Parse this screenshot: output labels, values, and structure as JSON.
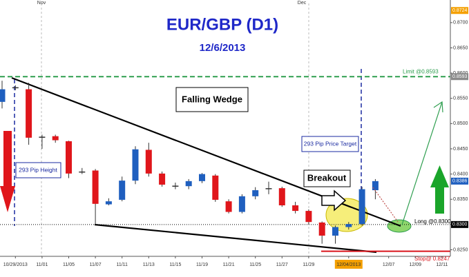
{
  "chart_data": {
    "type": "candlestick",
    "title": "EUR/GBP (D1)",
    "subtitle": "12/6/2013",
    "top_labels": [
      "Nov",
      "Dec"
    ],
    "categories": [
      null,
      "10/29/2013",
      null,
      "11/01",
      null,
      "11/05",
      null,
      "11/07",
      null,
      "11/11",
      null,
      "11/13",
      null,
      "11/15",
      null,
      "11/19",
      null,
      "11/21",
      null,
      "11/25",
      null,
      "11/27",
      null,
      "11/29",
      null,
      null,
      "12/04/2013",
      null,
      null,
      "12/07",
      null,
      "12/09",
      null,
      "12/11",
      null,
      null
    ],
    "highlight_category": 26,
    "open": [
      0.8543,
      0.8572,
      0.8568,
      0.8474,
      0.8475,
      0.8465,
      0.8405,
      0.8407,
      0.834,
      0.8349,
      0.8387,
      0.8448,
      0.8401,
      0.8377,
      0.8376,
      0.8386,
      0.8397,
      0.8346,
      0.8325,
      0.8356,
      0.8372,
      0.8372,
      0.8338,
      0.8327,
      0.8304,
      0.8278,
      0.8295,
      0.8301,
      0.8368,
      null,
      null,
      null,
      null,
      null,
      null,
      null
    ],
    "high": [
      0.8585,
      0.8576,
      0.8581,
      0.8478,
      0.8478,
      0.8466,
      0.8412,
      0.841,
      0.8352,
      0.8395,
      0.8455,
      0.8462,
      0.8405,
      0.8383,
      0.839,
      0.8402,
      0.84,
      0.835,
      0.836,
      0.8374,
      0.8385,
      0.8375,
      0.8345,
      0.833,
      0.8306,
      0.8298,
      0.8305,
      0.8375,
      0.839,
      null,
      null,
      null,
      null,
      null,
      null,
      null
    ],
    "low": [
      0.853,
      0.8566,
      0.8458,
      0.845,
      0.8462,
      0.8392,
      0.84,
      0.83,
      0.8338,
      0.8346,
      0.838,
      0.8395,
      0.8375,
      0.837,
      0.837,
      0.8382,
      0.8345,
      0.8322,
      0.8322,
      0.835,
      0.836,
      0.8335,
      0.8322,
      0.83,
      0.8262,
      0.8262,
      0.829,
      0.8298,
      0.835,
      null,
      null,
      null,
      null,
      null,
      null,
      null
    ],
    "close": [
      0.8568,
      0.857,
      0.8472,
      0.8473,
      0.8467,
      0.8401,
      0.8404,
      0.8341,
      0.8346,
      0.8387,
      0.8449,
      0.8401,
      0.8379,
      0.8376,
      0.8386,
      0.84,
      0.8349,
      0.8325,
      0.8356,
      0.8368,
      0.8371,
      0.8338,
      0.8327,
      0.8305,
      0.8278,
      0.8295,
      0.8301,
      0.837,
      0.8386,
      null,
      null,
      null,
      null,
      null,
      null,
      null
    ],
    "up_color": "#1f5fbf",
    "down_color": "#e0161b",
    "ylim": [
      0.8237,
      0.8738
    ],
    "yticks": [
      {
        "value": 0.825,
        "label": "0.8250"
      },
      {
        "value": 0.83,
        "label": "0.8300"
      },
      {
        "value": 0.835,
        "label": "0.8350"
      },
      {
        "value": 0.84,
        "label": "0.8400"
      },
      {
        "value": 0.845,
        "label": "0.8450"
      },
      {
        "value": 0.85,
        "label": "0.8500"
      },
      {
        "value": 0.855,
        "label": "0.8550"
      },
      {
        "value": 0.86,
        "label": "0.8600"
      },
      {
        "value": 0.865,
        "label": "0.8650"
      },
      {
        "value": 0.87,
        "label": "0.8700"
      }
    ],
    "price_markers": [
      {
        "value": 0.8724,
        "label": "0.8724",
        "color": "#f4a000"
      },
      {
        "value": 0.8593,
        "label": "0.8593",
        "color": "#8a8a8a"
      },
      {
        "value": 0.8386,
        "label": "0.8386",
        "color": "#1f5fbf"
      },
      {
        "value": 0.83,
        "label": "0.8300",
        "color": "#000000"
      }
    ],
    "levels": [
      {
        "label": "Limit @0.8593",
        "value": 0.8593,
        "color": "#2e9e4f"
      },
      {
        "label": "Long @0.8300",
        "value": 0.83,
        "color": "#000000"
      },
      {
        "label": "Stop@ 0.8247",
        "value": 0.8247,
        "color": "#d9141b"
      }
    ],
    "annotations": [
      "Falling Wedge",
      "293 Pip Height",
      "293 Pip Price Target",
      "Breakout"
    ]
  }
}
